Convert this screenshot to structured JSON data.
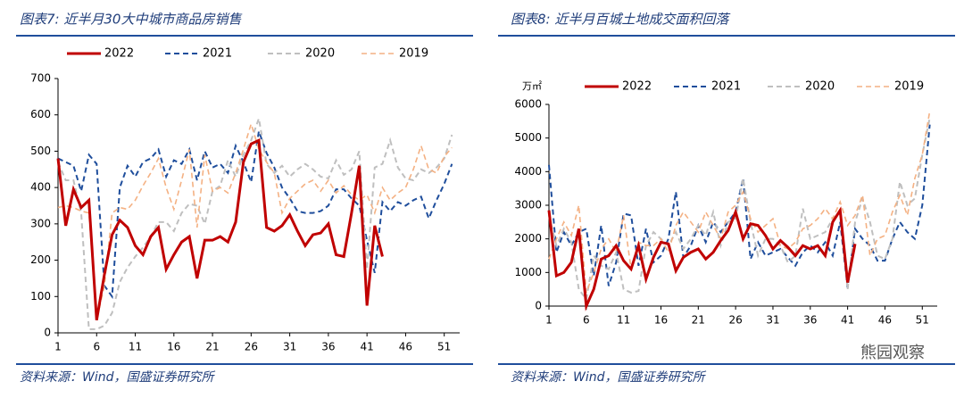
{
  "chart_data": [
    {
      "type": "line",
      "title": "图表7: 近半月30大中城市商品房销售",
      "source": "资料来源：Wind，国盛证券研究所",
      "x": [
        1,
        2,
        3,
        4,
        5,
        6,
        7,
        8,
        9,
        10,
        11,
        12,
        13,
        14,
        15,
        16,
        17,
        18,
        19,
        20,
        21,
        22,
        23,
        24,
        25,
        26,
        27,
        28,
        29,
        30,
        31,
        32,
        33,
        34,
        35,
        36,
        37,
        38,
        39,
        40,
        41,
        42,
        43,
        44,
        45,
        46,
        47,
        48,
        49,
        50,
        51,
        52
      ],
      "xlim": [
        1,
        53
      ],
      "xticks": [
        1,
        6,
        11,
        16,
        21,
        26,
        31,
        36,
        41,
        46,
        51
      ],
      "ylim": [
        0,
        700
      ],
      "yticks": [
        0,
        100,
        200,
        300,
        400,
        500,
        600,
        700
      ],
      "series": [
        {
          "name": "2022",
          "color": "#c00000",
          "values": [
            480,
            295,
            395,
            345,
            365,
            35,
            160,
            270,
            310,
            290,
            240,
            215,
            265,
            290,
            175,
            215,
            250,
            265,
            150,
            255,
            255,
            265,
            250,
            305,
            470,
            520,
            530,
            290,
            280,
            295,
            325,
            280,
            240,
            270,
            275,
            300,
            215,
            210,
            330,
            460,
            75,
            295,
            210,
            null,
            null,
            null,
            null,
            null,
            null,
            null,
            null,
            null
          ]
        },
        {
          "name": "2021",
          "color": "#1f4e9c",
          "values": [
            480,
            470,
            460,
            390,
            490,
            465,
            130,
            100,
            400,
            460,
            430,
            470,
            480,
            505,
            430,
            475,
            465,
            505,
            420,
            500,
            455,
            465,
            440,
            515,
            470,
            415,
            555,
            495,
            455,
            400,
            370,
            335,
            330,
            330,
            335,
            350,
            395,
            395,
            370,
            350,
            255,
            165,
            360,
            335,
            360,
            350,
            365,
            375,
            315,
            365,
            410,
            465
          ]
        },
        {
          "name": "2020",
          "color": "#bfbfbf",
          "values": [
            470,
            420,
            420,
            330,
            10,
            10,
            20,
            55,
            140,
            180,
            210,
            235,
            265,
            305,
            305,
            280,
            330,
            355,
            350,
            300,
            390,
            405,
            475,
            430,
            490,
            530,
            590,
            465,
            440,
            460,
            430,
            450,
            465,
            450,
            430,
            425,
            475,
            435,
            450,
            500,
            175,
            455,
            465,
            530,
            455,
            425,
            420,
            450,
            440,
            455,
            480,
            545
          ]
        },
        {
          "name": "2019",
          "color": "#f4b183",
          "values": [
            345,
            350,
            345,
            335,
            330,
            35,
            130,
            330,
            345,
            340,
            365,
            405,
            440,
            480,
            400,
            340,
            420,
            505,
            290,
            490,
            390,
            400,
            385,
            440,
            505,
            575,
            505,
            470,
            440,
            330,
            370,
            390,
            410,
            420,
            390,
            420,
            385,
            405,
            380,
            365,
            380,
            330,
            400,
            365,
            385,
            400,
            450,
            515,
            450,
            440,
            485,
            510
          ]
        }
      ]
    },
    {
      "type": "line",
      "title": "图表8: 近半月百城土地成交面积回落",
      "source": "资料来源：Wind，国盛证券研究所",
      "y_unit": "万㎡",
      "x": [
        1,
        2,
        3,
        4,
        5,
        6,
        7,
        8,
        9,
        10,
        11,
        12,
        13,
        14,
        15,
        16,
        17,
        18,
        19,
        20,
        21,
        22,
        23,
        24,
        25,
        26,
        27,
        28,
        29,
        30,
        31,
        32,
        33,
        34,
        35,
        36,
        37,
        38,
        39,
        40,
        41,
        42,
        43,
        44,
        45,
        46,
        47,
        48,
        49,
        50,
        51,
        52
      ],
      "xlim": [
        1,
        53
      ],
      "xticks": [
        1,
        6,
        11,
        16,
        21,
        26,
        31,
        36,
        41,
        46,
        51
      ],
      "ylim": [
        0,
        6000
      ],
      "yticks": [
        0,
        1000,
        2000,
        3000,
        4000,
        5000,
        6000
      ],
      "series": [
        {
          "name": "2022",
          "color": "#c00000",
          "values": [
            2850,
            900,
            1000,
            1300,
            2300,
            0,
            500,
            1400,
            1500,
            1800,
            1350,
            1100,
            1800,
            800,
            1450,
            1900,
            1850,
            1050,
            1450,
            1600,
            1700,
            1400,
            1600,
            1950,
            2250,
            2800,
            2000,
            2450,
            2400,
            2100,
            1700,
            1950,
            1750,
            1500,
            1800,
            1700,
            1800,
            1500,
            2500,
            2850,
            700,
            1850,
            null,
            null,
            null,
            null,
            null,
            null,
            null,
            null,
            null,
            null
          ]
        },
        {
          "name": "2021",
          "color": "#1f4e9c",
          "values": [
            4200,
            1600,
            2200,
            1800,
            2200,
            2300,
            900,
            2400,
            600,
            1300,
            2750,
            2700,
            1200,
            2300,
            1300,
            1500,
            2000,
            3400,
            1450,
            1800,
            2400,
            1900,
            2500,
            2200,
            2500,
            2800,
            3800,
            1400,
            1900,
            1500,
            1600,
            1700,
            1450,
            1200,
            1600,
            1800,
            1600,
            1900,
            1500,
            2500,
            550,
            2300,
            2000,
            1800,
            1350,
            1350,
            2000,
            2500,
            2200,
            2000,
            3000,
            5400
          ]
        },
        {
          "name": "2020",
          "color": "#bfbfbf",
          "values": [
            2700,
            1800,
            2300,
            1900,
            500,
            200,
            1500,
            1200,
            1100,
            1600,
            500,
            400,
            450,
            1800,
            2200,
            2000,
            1800,
            2200,
            1700,
            2000,
            2400,
            2100,
            2800,
            1800,
            2500,
            2600,
            3800,
            2500,
            1500,
            2000,
            2000,
            1800,
            1300,
            1500,
            2900,
            2000,
            2100,
            2200,
            2600,
            2800,
            500,
            2500,
            3200,
            2500,
            1500,
            1400,
            2000,
            3700,
            3000,
            3200,
            4500,
            5600
          ]
        },
        {
          "name": "2019",
          "color": "#f4b183",
          "values": [
            1400,
            2000,
            2500,
            2100,
            3000,
            400,
            1000,
            1700,
            2000,
            1600,
            2700,
            1100,
            1900,
            1800,
            1800,
            2000,
            1600,
            2400,
            2800,
            2500,
            2200,
            2800,
            2400,
            2000,
            2800,
            3000,
            3400,
            2600,
            2200,
            2400,
            2600,
            1800,
            1700,
            1900,
            2300,
            2400,
            2600,
            2900,
            2600,
            3100,
            2400,
            2700,
            3300,
            1500,
            2000,
            2100,
            2800,
            3300,
            2700,
            3800,
            4500,
            5800
          ]
        }
      ]
    }
  ],
  "watermark": "熊园观察"
}
